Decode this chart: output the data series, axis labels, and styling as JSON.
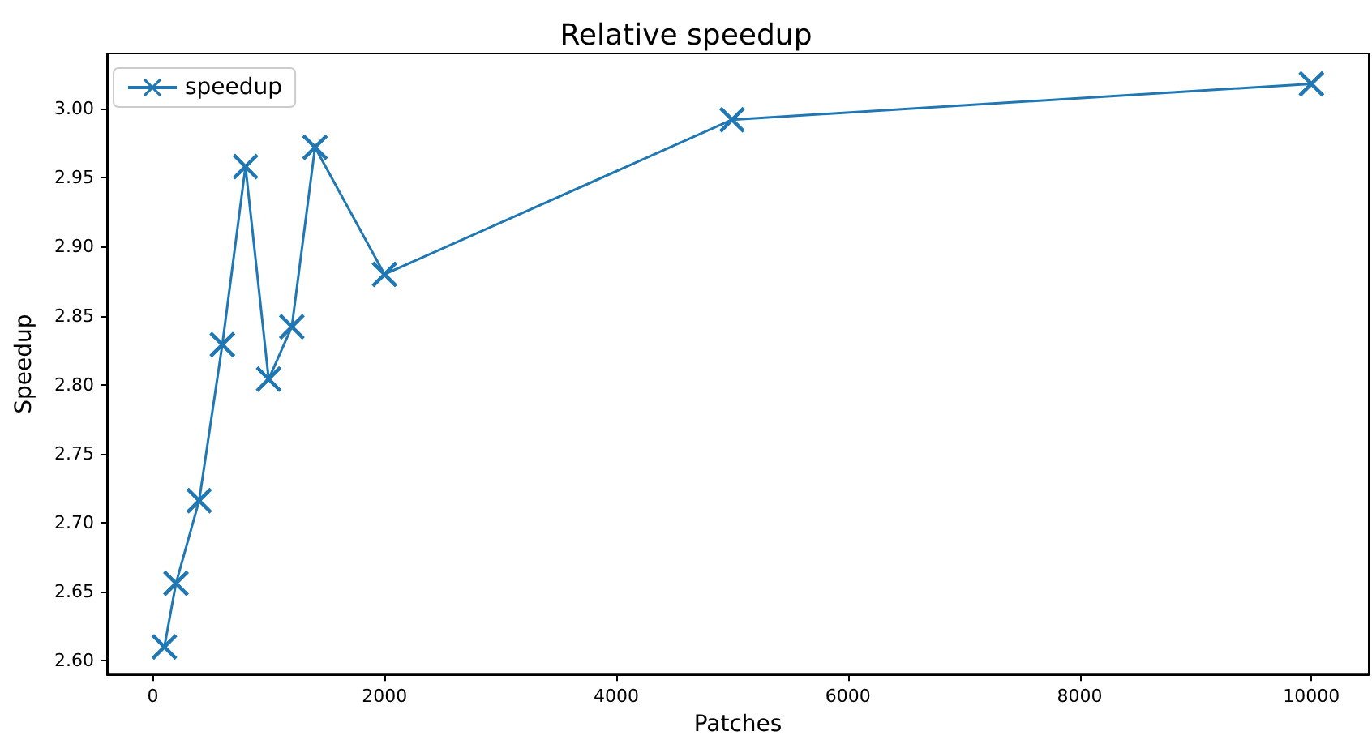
{
  "chart_data": {
    "type": "line",
    "title": "Relative speedup",
    "xlabel": "Patches",
    "ylabel": "Speedup",
    "series": [
      {
        "name": "speedup",
        "color": "#1f77b4",
        "x": [
          100,
          200,
          400,
          600,
          800,
          1000,
          1200,
          1400,
          2000,
          5000,
          10000
        ],
        "values": [
          2.61,
          2.656,
          2.716,
          2.829,
          2.958,
          2.804,
          2.842,
          2.972,
          2.88,
          2.992,
          3.018
        ]
      }
    ],
    "xlim": [
      -395,
      10495
    ],
    "xticks": [
      0,
      2000,
      4000,
      6000,
      8000,
      10000
    ],
    "ylim": [
      2.59,
      3.04
    ],
    "yticks": [
      {
        "value": 2.6,
        "label": "2.60"
      },
      {
        "value": 2.65,
        "label": "2.65"
      },
      {
        "value": 2.7,
        "label": "2.70"
      },
      {
        "value": 2.75,
        "label": "2.75"
      },
      {
        "value": 2.8,
        "label": "2.80"
      },
      {
        "value": 2.85,
        "label": "2.85"
      },
      {
        "value": 2.9,
        "label": "2.90"
      },
      {
        "value": 2.95,
        "label": "2.95"
      },
      {
        "value": 3.0,
        "label": "3.00"
      }
    ],
    "grid": false,
    "legend": "top left",
    "marker": "cross",
    "line_style": "solid"
  }
}
